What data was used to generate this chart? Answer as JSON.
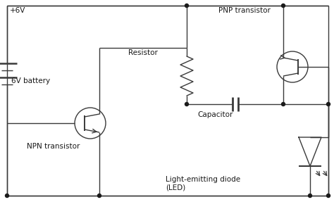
{
  "bg_color": "#ffffff",
  "line_color": "#3a3a3a",
  "text_color": "#1a1a1a",
  "dot_color": "#1a1a1a",
  "labels": {
    "battery_plus": "+6V",
    "battery_name": "6V battery",
    "npn_name": "NPN transistor",
    "pnp_name": "PNP transistor",
    "resistor_name": "Resistor",
    "capacitor_name": "Capacitor",
    "led_name": "Light-emitting diode\n(LED)"
  },
  "figsize": [
    4.74,
    2.87
  ],
  "dpi": 100
}
